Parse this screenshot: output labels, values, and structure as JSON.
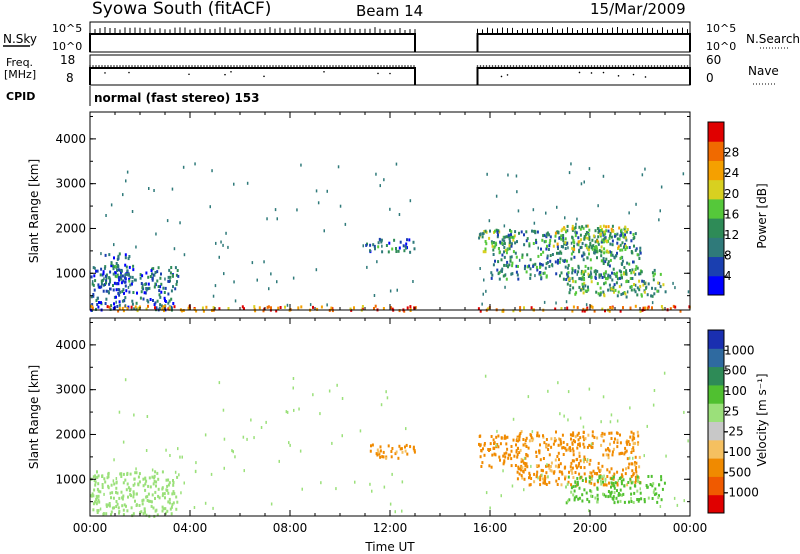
{
  "header": {
    "station": "Syowa South (fitACF)",
    "beam": "Beam 14",
    "date": "15/Mar/2009"
  },
  "panels": {
    "nsky": {
      "label": "N.Sky",
      "ticks": [
        "10^5",
        "10^0"
      ],
      "right_label": "N.Search",
      "right_ticks": [
        "10^5",
        "10^0"
      ]
    },
    "freq": {
      "label_line1": "Freq.",
      "label_line2": "[MHz]",
      "ticks": [
        "18",
        "8"
      ],
      "right_label": "Nave",
      "right_ticks": [
        "60",
        "0"
      ]
    },
    "cpid": {
      "label": "CPID",
      "mode_text": "normal (fast stereo) 153"
    }
  },
  "axes": {
    "xlabel": "Time UT",
    "xticks": [
      "00:00",
      "04:00",
      "08:00",
      "12:00",
      "16:00",
      "20:00",
      "00:00"
    ],
    "ylabel": "Slant Range [km]",
    "yticks": [
      "4000",
      "3000",
      "2000",
      "1000"
    ]
  },
  "colors": {
    "power": [
      "#0000ff",
      "#1a3fb0",
      "#2f7a7a",
      "#2e8b57",
      "#55c83a",
      "#d8d020",
      "#f5a000",
      "#f06a00",
      "#e00000"
    ],
    "velocity": [
      "#e00000",
      "#f05a00",
      "#f08a00",
      "#f5c060",
      "#c8c8c8",
      "#9be07a",
      "#50c030",
      "#2e8b57",
      "#2f6aa0",
      "#1a2fb0"
    ]
  },
  "chart_data": [
    {
      "type": "heatmap",
      "title": "Power",
      "xlabel": "Time UT",
      "ylabel": "Slant Range [km]",
      "xlim_hours": [
        0,
        24
      ],
      "ylim_km": [
        180,
        4600
      ],
      "colorbar": {
        "label": "Power [dB]",
        "ticks": [
          "28",
          "24",
          "20",
          "16",
          "12",
          "8",
          "4"
        ],
        "range": [
          0,
          30
        ]
      },
      "data_gap_hours": [
        13.0,
        15.5
      ],
      "regions": [
        {
          "t": [
            0.0,
            3.5
          ],
          "r": [
            200,
            1200
          ],
          "value": 7
        },
        {
          "t": [
            0.5,
            1.6
          ],
          "r": [
            600,
            1500
          ],
          "value": 8
        },
        {
          "t": [
            11.0,
            13.0
          ],
          "r": [
            1500,
            1800
          ],
          "value": 8
        },
        {
          "t": [
            15.5,
            17.0
          ],
          "r": [
            1500,
            2000
          ],
          "value": 14
        },
        {
          "t": [
            16.0,
            22.0
          ],
          "r": [
            900,
            2000
          ],
          "value": 10
        },
        {
          "t": [
            18.5,
            21.5
          ],
          "r": [
            1500,
            2100
          ],
          "value": 16
        },
        {
          "t": [
            19.0,
            23.0
          ],
          "r": [
            500,
            1100
          ],
          "value": 12
        },
        {
          "t": [
            0.0,
            24.0
          ],
          "r": [
            180,
            300
          ],
          "value": 24
        }
      ]
    },
    {
      "type": "heatmap",
      "title": "Velocity",
      "xlabel": "Time UT",
      "ylabel": "Slant Range [km]",
      "xlim_hours": [
        0,
        24
      ],
      "ylim_km": [
        180,
        4600
      ],
      "colorbar": {
        "label": "Velocity [m s⁻¹]",
        "ticks": [
          "1000",
          "500",
          "100",
          "25",
          "-25",
          "-100",
          "-500",
          "-1000"
        ]
      },
      "data_gap_hours": [
        13.0,
        15.5
      ],
      "regions": [
        {
          "t": [
            0.0,
            3.5
          ],
          "r": [
            200,
            1200
          ],
          "value": 50
        },
        {
          "t": [
            11.0,
            13.0
          ],
          "r": [
            1500,
            1800
          ],
          "value": -150
        },
        {
          "t": [
            15.5,
            17.5
          ],
          "r": [
            1300,
            2000
          ],
          "value": -300
        },
        {
          "t": [
            17.0,
            22.0
          ],
          "r": [
            900,
            2100
          ],
          "value": -150
        },
        {
          "t": [
            19.0,
            23.0
          ],
          "r": [
            500,
            1100
          ],
          "value": 150
        }
      ]
    }
  ]
}
